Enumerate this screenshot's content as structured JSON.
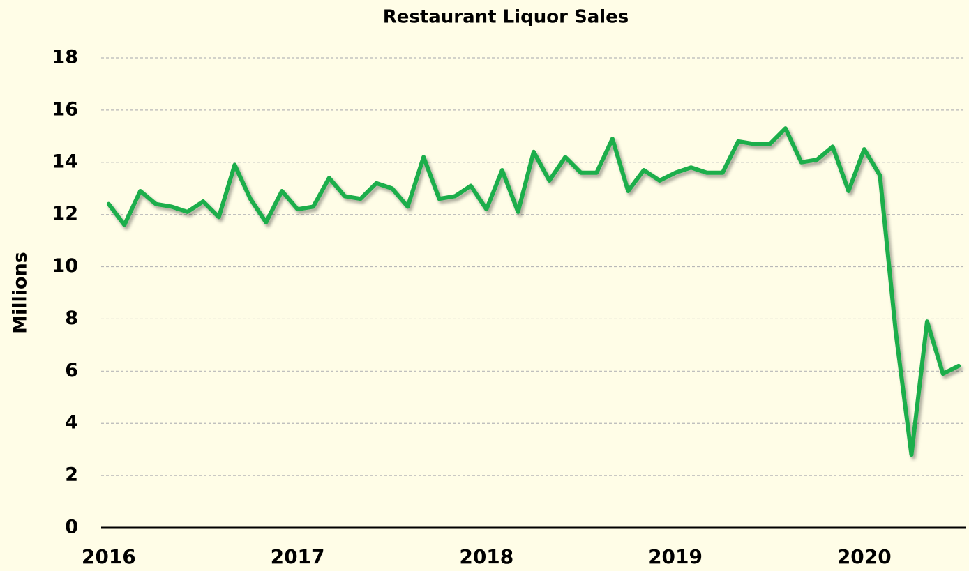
{
  "chart_data": {
    "type": "line",
    "title": "Restaurant Liquor Sales",
    "ylabel": "Millions",
    "x": [
      2016,
      2016.083,
      2016.167,
      2016.25,
      2016.333,
      2016.417,
      2016.5,
      2016.583,
      2016.667,
      2016.75,
      2016.833,
      2016.917,
      2017,
      2017.083,
      2017.167,
      2017.25,
      2017.333,
      2017.417,
      2017.5,
      2017.583,
      2017.667,
      2017.75,
      2017.833,
      2017.917,
      2018,
      2018.083,
      2018.167,
      2018.25,
      2018.333,
      2018.417,
      2018.5,
      2018.583,
      2018.667,
      2018.75,
      2018.833,
      2018.917,
      2019,
      2019.083,
      2019.167,
      2019.25,
      2019.333,
      2019.417,
      2019.5,
      2019.583,
      2019.667,
      2019.75,
      2019.833,
      2019.917,
      2020,
      2020.083,
      2020.167,
      2020.25,
      2020.333,
      2020.417,
      2020.5
    ],
    "series": [
      {
        "name": "Restaurant Liquor Sales",
        "color": "#1fae4b",
        "values": [
          12.4,
          11.6,
          12.9,
          12.4,
          12.3,
          12.1,
          12.5,
          11.9,
          13.9,
          12.6,
          11.7,
          12.9,
          12.2,
          12.3,
          13.4,
          12.7,
          12.6,
          13.2,
          13.0,
          12.3,
          14.2,
          12.6,
          12.7,
          13.1,
          12.2,
          13.7,
          12.1,
          14.4,
          13.3,
          14.2,
          13.6,
          13.6,
          14.9,
          12.9,
          13.7,
          13.3,
          13.6,
          13.8,
          13.6,
          13.6,
          14.8,
          14.7,
          14.7,
          15.3,
          14.0,
          14.1,
          14.6,
          12.9,
          14.5,
          13.5,
          7.5,
          2.8,
          7.9,
          5.9,
          6.2
        ]
      }
    ],
    "xlim": [
      2015.96,
      2020.54
    ],
    "xticks": [
      2016,
      2017,
      2018,
      2019,
      2020
    ],
    "ylim": [
      0,
      18
    ],
    "yticks": [
      0,
      2,
      4,
      6,
      8,
      10,
      12,
      14,
      16,
      18
    ],
    "grid": true
  }
}
